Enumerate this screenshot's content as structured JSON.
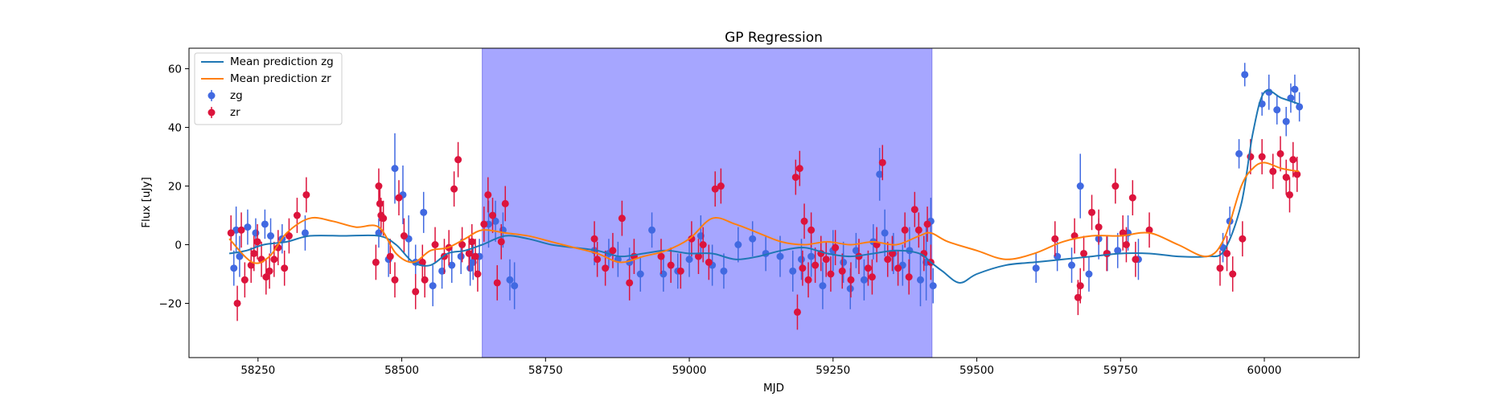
{
  "chart_data": {
    "type": "scatter",
    "title": "GP Regression",
    "xlabel": "MJD",
    "ylabel": "Flux [uJy]",
    "xlim": [
      58130,
      60165
    ],
    "ylim": [
      -38.5,
      67
    ],
    "xticks": [
      58250,
      58500,
      58750,
      59000,
      59250,
      59500,
      59750,
      60000
    ],
    "yticks": [
      -20,
      0,
      20,
      40,
      60
    ],
    "legend_position": "upper-left",
    "shaded_region": {
      "x_start": 58640,
      "x_end": 59422,
      "color": "#a6a6ff"
    },
    "colors": {
      "zg": "#4169e1",
      "zr": "#dc143c",
      "mean_zg": "#1f77b4",
      "mean_zr": "#ff7f0e"
    },
    "series": [
      {
        "name": "Mean prediction zg",
        "kind": "line",
        "color": "#1f77b4",
        "x": [
          58200,
          58230,
          58260,
          58300,
          58340,
          58400,
          58460,
          58490,
          58520,
          58550,
          58580,
          58610,
          58640,
          58680,
          58720,
          58760,
          58800,
          58840,
          58880,
          58920,
          58960,
          59000,
          59040,
          59080,
          59120,
          59160,
          59200,
          59240,
          59280,
          59320,
          59360,
          59400,
          59420,
          59440,
          59470,
          59500,
          59550,
          59600,
          59650,
          59700,
          59750,
          59800,
          59850,
          59900,
          59930,
          59960,
          59980,
          60000,
          60030,
          60060
        ],
        "y": [
          -3,
          -2,
          0,
          1,
          3,
          3,
          3,
          0,
          -6,
          -7,
          -3,
          -2,
          0,
          3,
          2,
          0,
          -1,
          -2,
          -4,
          -3,
          -2,
          -3,
          -3,
          -5,
          -4,
          -2,
          -1,
          -3,
          -4,
          -3,
          -2,
          -3,
          -6,
          -9,
          -13,
          -10,
          -7,
          -6,
          -5,
          -4,
          -3,
          -3,
          -4,
          -4,
          -2,
          14,
          38,
          52,
          50,
          48
        ]
      },
      {
        "name": "Mean prediction zr",
        "kind": "line",
        "color": "#ff7f0e",
        "x": [
          58200,
          58240,
          58270,
          58300,
          58340,
          58380,
          58420,
          58460,
          58490,
          58520,
          58550,
          58580,
          58610,
          58640,
          58680,
          58720,
          58760,
          58800,
          58840,
          58880,
          58920,
          58960,
          59000,
          59040,
          59080,
          59120,
          59160,
          59200,
          59240,
          59280,
          59320,
          59360,
          59400,
          59420,
          59450,
          59500,
          59550,
          59600,
          59650,
          59700,
          59750,
          59800,
          59850,
          59900,
          59930,
          59960,
          59980,
          60000,
          60030,
          60060
        ],
        "y": [
          2,
          -6,
          -4,
          4,
          9,
          8,
          6,
          6,
          -3,
          -6,
          -2,
          -1,
          2,
          5,
          4,
          3,
          1,
          -1,
          -3,
          -6,
          -4,
          -2,
          2,
          9,
          7,
          4,
          1,
          0,
          1,
          0,
          1,
          0,
          3,
          4,
          1,
          -2,
          -5,
          -3,
          1,
          3,
          3,
          4,
          0,
          -4,
          2,
          20,
          26,
          28,
          26,
          25
        ]
      },
      {
        "name": "zg",
        "kind": "errorbar",
        "color": "#4169e1",
        "x": [
          58208,
          58212,
          58218,
          58232,
          58246,
          58262,
          58272,
          58292,
          58332,
          58460,
          58477,
          58488,
          58502,
          58512,
          58524,
          58538,
          58554,
          58570,
          58587,
          58603,
          58619,
          58624,
          58635,
          58651,
          58663,
          58676,
          58688,
          58696,
          58835,
          58860,
          58876,
          58896,
          58915,
          58935,
          58955,
          58980,
          59000,
          59020,
          59040,
          59060,
          59085,
          59110,
          59133,
          59158,
          59180,
          59195,
          59212,
          59232,
          59250,
          59268,
          59280,
          59290,
          59304,
          59320,
          59331,
          59340,
          59355,
          59371,
          59383,
          59402,
          59412,
          59420,
          59424,
          59603,
          59640,
          59665,
          59680,
          59695,
          59712,
          59727,
          59745,
          59763,
          59781,
          59928,
          59940,
          59956,
          59966,
          59996,
          60008,
          60022,
          60038,
          60046,
          60053,
          60061
        ],
        "y": [
          -8,
          5,
          -4,
          6,
          4,
          7,
          3,
          2,
          4,
          4,
          -5,
          26,
          17,
          2,
          -6,
          11,
          -14,
          -9,
          -7,
          -4,
          -8,
          -6,
          -4,
          7,
          8,
          5,
          -12,
          -14,
          -2,
          -3,
          -5,
          -6,
          -10,
          5,
          -10,
          -9,
          -5,
          3,
          -7,
          -9,
          0,
          2,
          -3,
          -4,
          -9,
          -5,
          -4,
          -14,
          -2,
          -6,
          -15,
          -2,
          -12,
          1,
          24,
          4,
          -3,
          -7,
          -2,
          -12,
          -6,
          8,
          -14,
          -8,
          -4,
          -7,
          20,
          -10,
          2,
          -3,
          -2,
          4,
          -5,
          -1,
          8,
          31,
          58,
          48,
          52,
          46,
          42,
          50,
          53,
          47
        ],
        "err": [
          6,
          8,
          7,
          6,
          5,
          5,
          6,
          5,
          6,
          5,
          6,
          12,
          10,
          8,
          6,
          7,
          7,
          6,
          6,
          6,
          6,
          6,
          6,
          8,
          7,
          6,
          7,
          8,
          5,
          5,
          6,
          5,
          6,
          6,
          6,
          6,
          6,
          7,
          7,
          6,
          6,
          6,
          6,
          7,
          7,
          7,
          7,
          8,
          7,
          7,
          7,
          6,
          7,
          6,
          9,
          8,
          7,
          7,
          8,
          9,
          13,
          8,
          6,
          5,
          5,
          6,
          11,
          6,
          7,
          6,
          6,
          6,
          7,
          5,
          5,
          5,
          4,
          4,
          6,
          5,
          5,
          5,
          5,
          5
        ]
      },
      {
        "name": "zr",
        "kind": "errorbar",
        "color": "#dc143c",
        "x": [
          58203,
          58214,
          58221,
          58227,
          58238,
          58243,
          58249,
          58256,
          58264,
          58270,
          58278,
          58285,
          58296,
          58304,
          58318,
          58334,
          58455,
          58460,
          58462,
          58464,
          58468,
          58480,
          58488,
          58495,
          58504,
          58524,
          58536,
          58540,
          58558,
          58574,
          58582,
          58591,
          58598,
          58605,
          58617,
          58622,
          58628,
          58632,
          58643,
          58650,
          58658,
          58666,
          58673,
          58680,
          58835,
          58840,
          58854,
          58867,
          58883,
          58896,
          58904,
          58951,
          58968,
          58985,
          59004,
          59016,
          59024,
          59034,
          59045,
          59055,
          59185,
          59188,
          59192,
          59197,
          59200,
          59207,
          59212,
          59219,
          59229,
          59238,
          59246,
          59254,
          59266,
          59281,
          59295,
          59311,
          59318,
          59326,
          59336,
          59345,
          59353,
          59363,
          59375,
          59382,
          59392,
          59399,
          59408,
          59414,
          59420,
          59636,
          59670,
          59676,
          59680,
          59686,
          59700,
          59712,
          59726,
          59741,
          59754,
          59760,
          59771,
          59776,
          59800,
          59923,
          59935,
          59945,
          59962,
          59976,
          59996,
          60015,
          60028,
          60038,
          60044,
          60050,
          60057
        ],
        "y": [
          4,
          -20,
          5,
          -12,
          -7,
          -3,
          1,
          -5,
          -11,
          -9,
          -5,
          -1,
          -8,
          3,
          10,
          17,
          -6,
          20,
          14,
          10,
          9,
          -4,
          -12,
          16,
          3,
          -16,
          -6,
          -12,
          0,
          -4,
          -1,
          19,
          29,
          0,
          -3,
          1,
          -4,
          -10,
          7,
          17,
          10,
          -13,
          1,
          14,
          2,
          -5,
          -8,
          -2,
          9,
          -13,
          -4,
          -4,
          -7,
          -9,
          2,
          -4,
          0,
          -6,
          19,
          20,
          23,
          -23,
          26,
          -8,
          8,
          -12,
          5,
          -7,
          -3,
          -5,
          -10,
          -1,
          -9,
          -12,
          -4,
          -8,
          -11,
          0,
          28,
          -5,
          -3,
          -8,
          5,
          -11,
          12,
          5,
          -3,
          7,
          -6,
          2,
          3,
          -18,
          -14,
          -3,
          11,
          6,
          -3,
          20,
          4,
          0,
          16,
          -5,
          5,
          -8,
          -3,
          -10,
          2,
          30,
          30,
          25,
          31,
          23,
          17,
          29,
          24
        ]
      }
    ]
  },
  "legend": {
    "items": [
      {
        "label": "Mean prediction zg",
        "kind": "line",
        "color": "#1f77b4"
      },
      {
        "label": "Mean prediction zr",
        "kind": "line",
        "color": "#ff7f0e"
      },
      {
        "label": "zg",
        "kind": "marker",
        "color": "#4169e1"
      },
      {
        "label": "zr",
        "kind": "marker",
        "color": "#dc143c"
      }
    ]
  }
}
